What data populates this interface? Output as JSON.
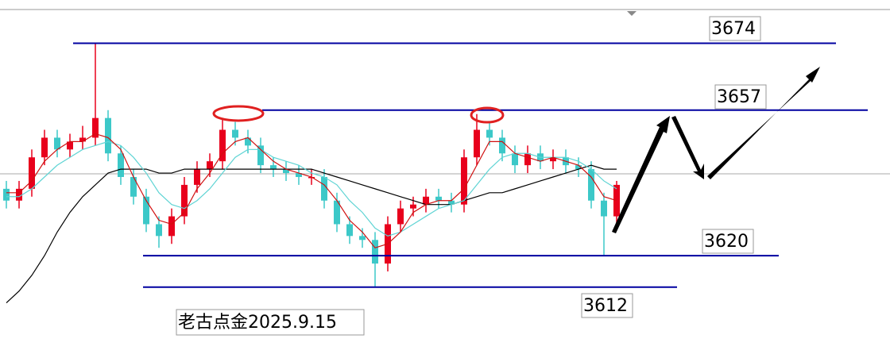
{
  "chart_data": {
    "type": "candlestick",
    "open": [
      3637,
      3634,
      3637,
      3645,
      3650,
      3647,
      3649,
      3650,
      3655,
      3646,
      3640,
      3635,
      3628,
      3625,
      3630,
      3638,
      3642,
      3644,
      3652,
      3650,
      3648,
      3643,
      3642,
      3641,
      3640,
      3640,
      3634,
      3628,
      3625,
      3624,
      3618,
      3628,
      3632,
      3633,
      3635,
      3634,
      3633,
      3645,
      3652,
      3650,
      3646,
      3643,
      3646,
      3644,
      3645,
      3643,
      3642,
      3634,
      3630
    ],
    "high": [
      3639,
      3639,
      3647,
      3652,
      3652,
      3651,
      3653,
      3674,
      3657,
      3648,
      3642,
      3637,
      3630,
      3632,
      3640,
      3644,
      3646,
      3655,
      3654,
      3652,
      3650,
      3645,
      3644,
      3643,
      3642,
      3642,
      3636,
      3630,
      3627,
      3626,
      3630,
      3634,
      3635,
      3637,
      3637,
      3636,
      3647,
      3656,
      3654,
      3652,
      3648,
      3648,
      3648,
      3647,
      3647,
      3645,
      3644,
      3636,
      3639
    ],
    "low": [
      3632,
      3632,
      3635,
      3643,
      3645,
      3645,
      3647,
      3648,
      3644,
      3638,
      3633,
      3626,
      3622,
      3623,
      3628,
      3636,
      3640,
      3642,
      3648,
      3646,
      3641,
      3640,
      3639,
      3638,
      3638,
      3632,
      3626,
      3623,
      3622,
      3612,
      3616,
      3626,
      3630,
      3631,
      3632,
      3631,
      3631,
      3643,
      3648,
      3644,
      3641,
      3641,
      3642,
      3642,
      3641,
      3640,
      3632,
      3620,
      3628
    ],
    "close": [
      3634,
      3637,
      3645,
      3650,
      3647,
      3649,
      3650,
      3655,
      3646,
      3640,
      3635,
      3628,
      3625,
      3630,
      3638,
      3642,
      3644,
      3652,
      3650,
      3648,
      3643,
      3642,
      3641,
      3640,
      3640,
      3634,
      3628,
      3625,
      3624,
      3618,
      3628,
      3632,
      3633,
      3635,
      3634,
      3633,
      3645,
      3652,
      3650,
      3646,
      3643,
      3646,
      3644,
      3645,
      3643,
      3642,
      3634,
      3630,
      3638
    ],
    "up_color": "#e8001c",
    "down_color": "#3cc8c8",
    "series": [
      {
        "color": "#000000",
        "values": [
          3608,
          3611,
          3615,
          3620,
          3626,
          3631,
          3635,
          3638,
          3641,
          3642,
          3642,
          3642,
          3641,
          3641,
          3642,
          3642,
          3642,
          3642,
          3642,
          3642,
          3642,
          3642,
          3642,
          3642,
          3642,
          3641,
          3640,
          3639,
          3638,
          3637,
          3636,
          3635,
          3634,
          3633,
          3633,
          3633,
          3634,
          3635,
          3636,
          3636,
          3637,
          3638,
          3639,
          3640,
          3641,
          3642,
          3643,
          3642,
          3642
        ]
      },
      {
        "color": "#5fd4d4",
        "values": [
          3635,
          3635,
          3637,
          3640,
          3643,
          3645,
          3647,
          3648,
          3649,
          3648,
          3645,
          3641,
          3636,
          3633,
          3632,
          3634,
          3637,
          3641,
          3645,
          3647,
          3647,
          3645,
          3644,
          3643,
          3641,
          3640,
          3638,
          3634,
          3631,
          3627,
          3625,
          3626,
          3628,
          3630,
          3632,
          3633,
          3634,
          3638,
          3642,
          3645,
          3646,
          3646,
          3645,
          3645,
          3645,
          3644,
          3642,
          3639,
          3637
        ]
      },
      {
        "color": "#d01010",
        "values": [
          3636,
          3636,
          3639,
          3644,
          3647,
          3649,
          3649,
          3651,
          3650,
          3647,
          3640,
          3634,
          3629,
          3628,
          3631,
          3637,
          3641,
          3646,
          3649,
          3650,
          3647,
          3644,
          3642,
          3641,
          3640,
          3638,
          3634,
          3629,
          3626,
          3622,
          3623,
          3626,
          3631,
          3633,
          3634,
          3634,
          3637,
          3643,
          3649,
          3649,
          3646,
          3645,
          3644,
          3645,
          3644,
          3643,
          3640,
          3635,
          3634
        ]
      }
    ],
    "ylim": [
      3595,
      3685
    ],
    "levels": [
      3674,
      3657,
      3620,
      3612
    ],
    "level_color": "#0000a0",
    "annotation": "老古点金2025.9.15"
  }
}
